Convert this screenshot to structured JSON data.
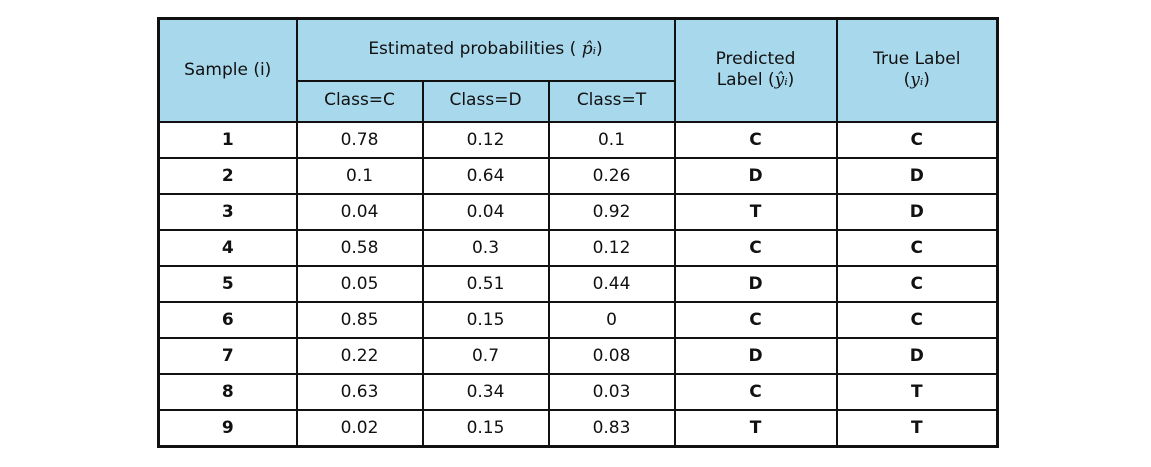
{
  "header": {
    "sample": "Sample (i)",
    "estimated": "Estimated probabilities (",
    "estimated_symbol": "p̂ᵢ",
    "estimated_close": ")",
    "predicted_line1": "Predicted",
    "predicted_line2": "Label (",
    "predicted_symbol": "ŷᵢ",
    "predicted_close": ")",
    "true_line1": "True Label",
    "true_open": "(",
    "true_symbol": "yᵢ",
    "true_close": ")",
    "class_c": "Class=C",
    "class_d": "Class=D",
    "class_t": "Class=T"
  },
  "rows": [
    {
      "i": "1",
      "c": "0.78",
      "d": "0.12",
      "t": "0.1",
      "pred": "C",
      "true": "C"
    },
    {
      "i": "2",
      "c": "0.1",
      "d": "0.64",
      "t": "0.26",
      "pred": "D",
      "true": "D"
    },
    {
      "i": "3",
      "c": "0.04",
      "d": "0.04",
      "t": "0.92",
      "pred": "T",
      "true": "D"
    },
    {
      "i": "4",
      "c": "0.58",
      "d": "0.3",
      "t": "0.12",
      "pred": "C",
      "true": "C"
    },
    {
      "i": "5",
      "c": "0.05",
      "d": "0.51",
      "t": "0.44",
      "pred": "D",
      "true": "C"
    },
    {
      "i": "6",
      "c": "0.85",
      "d": "0.15",
      "t": "0",
      "pred": "C",
      "true": "C"
    },
    {
      "i": "7",
      "c": "0.22",
      "d": "0.7",
      "t": "0.08",
      "pred": "D",
      "true": "D"
    },
    {
      "i": "8",
      "c": "0.63",
      "d": "0.34",
      "t": "0.03",
      "pred": "C",
      "true": "T"
    },
    {
      "i": "9",
      "c": "0.02",
      "d": "0.15",
      "t": "0.83",
      "pred": "T",
      "true": "T"
    }
  ],
  "colors": {
    "header_bg": "#a8d8ec",
    "border": "#111111"
  }
}
